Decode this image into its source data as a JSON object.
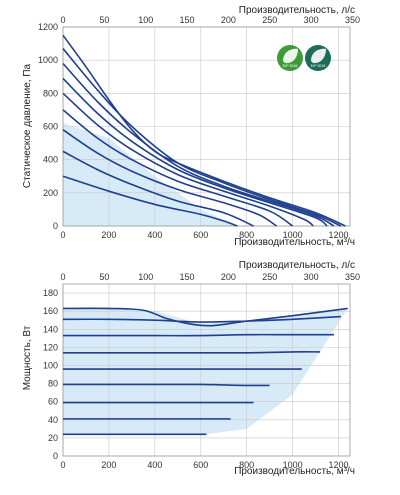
{
  "chart_data": [
    {
      "type": "line",
      "ylabel": "Статическое давление, Па",
      "xlabel": "Производительность, м³/ч",
      "x2label": "Производительность, л/с",
      "xlim": [
        0,
        1250
      ],
      "ylim": [
        0,
        1200
      ],
      "x2lim": [
        0,
        347
      ],
      "xticks": [
        0,
        200,
        400,
        600,
        800,
        1000,
        1200
      ],
      "yticks": [
        0,
        200,
        400,
        600,
        800,
        1000,
        1200
      ],
      "x2ticks": [
        0,
        50,
        100,
        150,
        200,
        250,
        300,
        350
      ],
      "grid": true,
      "line_color": "#1f3f8f",
      "fill_color": "#d7eaf7",
      "badges": [
        {
          "text": "ErP 2016",
          "color": "#3f9a3a"
        },
        {
          "text": "ErP 2018",
          "color": "#1f6b5a"
        }
      ],
      "series": [
        {
          "x": [
            0,
            200,
            400,
            600,
            700,
            760
          ],
          "y": [
            300,
            210,
            130,
            70,
            30,
            0
          ]
        },
        {
          "x": [
            0,
            150,
            300,
            500,
            700,
            830
          ],
          "y": [
            450,
            340,
            250,
            150,
            80,
            0
          ]
        },
        {
          "x": [
            0,
            150,
            300,
            500,
            700,
            850,
            930
          ],
          "y": [
            580,
            440,
            330,
            220,
            140,
            70,
            0
          ]
        },
        {
          "x": [
            0,
            150,
            300,
            500,
            700,
            900,
            1000
          ],
          "y": [
            700,
            530,
            400,
            270,
            180,
            90,
            0
          ]
        },
        {
          "x": [
            0,
            150,
            300,
            500,
            700,
            900,
            1050,
            1090
          ],
          "y": [
            800,
            610,
            460,
            310,
            210,
            120,
            40,
            0
          ]
        },
        {
          "x": [
            0,
            150,
            300,
            500,
            700,
            900,
            1100,
            1150
          ],
          "y": [
            890,
            680,
            510,
            340,
            230,
            140,
            50,
            0
          ]
        },
        {
          "x": [
            0,
            150,
            300,
            500,
            700,
            900,
            1100,
            1180
          ],
          "y": [
            980,
            750,
            560,
            360,
            240,
            150,
            60,
            0
          ]
        },
        {
          "x": [
            0,
            150,
            300,
            500,
            700,
            900,
            1100,
            1210
          ],
          "y": [
            1070,
            820,
            600,
            380,
            260,
            160,
            70,
            0
          ]
        },
        {
          "x": [
            0,
            100,
            200,
            300,
            400,
            500,
            700,
            900,
            1100,
            1230
          ],
          "y": [
            1150,
            960,
            760,
            580,
            450,
            380,
            270,
            170,
            80,
            0
          ]
        }
      ],
      "envelope": {
        "x": [
          0,
          200,
          400,
          600,
          760,
          0
        ],
        "y": [
          620,
          530,
          300,
          100,
          0,
          0
        ]
      }
    },
    {
      "type": "line",
      "ylabel": "Мощность, Вт",
      "xlabel": "Производительность, м³/ч",
      "x2label": "Производительность, л/с",
      "xlim": [
        0,
        1250
      ],
      "ylim": [
        0,
        190
      ],
      "x2lim": [
        0,
        347
      ],
      "xticks": [
        0,
        200,
        400,
        600,
        800,
        1000,
        1200
      ],
      "yticks": [
        0,
        20,
        40,
        60,
        80,
        100,
        120,
        140,
        160,
        180
      ],
      "x2ticks": [
        0,
        50,
        100,
        150,
        200,
        250,
        300,
        350
      ],
      "grid": true,
      "line_color": "#1f3f8f",
      "fill_color": "#d7eaf7",
      "series": [
        {
          "x": [
            0,
            200,
            400,
            600,
            620
          ],
          "y": [
            24,
            24,
            24,
            24,
            24
          ]
        },
        {
          "x": [
            0,
            200,
            400,
            600,
            700,
            730
          ],
          "y": [
            41,
            41,
            41,
            41,
            41,
            41
          ]
        },
        {
          "x": [
            0,
            200,
            400,
            600,
            800,
            830
          ],
          "y": [
            59,
            59,
            59,
            59,
            59,
            59
          ]
        },
        {
          "x": [
            0,
            200,
            400,
            600,
            800,
            900
          ],
          "y": [
            79,
            79,
            79,
            79,
            78,
            78
          ]
        },
        {
          "x": [
            0,
            200,
            400,
            600,
            800,
            1000,
            1040
          ],
          "y": [
            96,
            96,
            96,
            96,
            96,
            96,
            96
          ]
        },
        {
          "x": [
            0,
            200,
            400,
            600,
            800,
            1000,
            1120
          ],
          "y": [
            114,
            114,
            114,
            114,
            114,
            115,
            115
          ]
        },
        {
          "x": [
            0,
            200,
            400,
            600,
            800,
            1000,
            1180
          ],
          "y": [
            133,
            133,
            133,
            133,
            134,
            134,
            134
          ]
        },
        {
          "x": [
            0,
            200,
            400,
            600,
            800,
            1000,
            1210
          ],
          "y": [
            151,
            151,
            150,
            148,
            149,
            151,
            154
          ]
        },
        {
          "x": [
            0,
            200,
            350,
            450,
            550,
            650,
            800,
            1000,
            1150,
            1240
          ],
          "y": [
            163,
            163,
            161,
            152,
            146,
            144,
            149,
            155,
            160,
            163
          ]
        }
      ],
      "envelope": {
        "x": [
          0,
          200,
          400,
          600,
          800,
          1000,
          1150,
          1240,
          1000,
          800,
          620,
          0
        ],
        "y": [
          163,
          163,
          160,
          146,
          149,
          155,
          160,
          163,
          68,
          30,
          24,
          24
        ]
      }
    }
  ]
}
